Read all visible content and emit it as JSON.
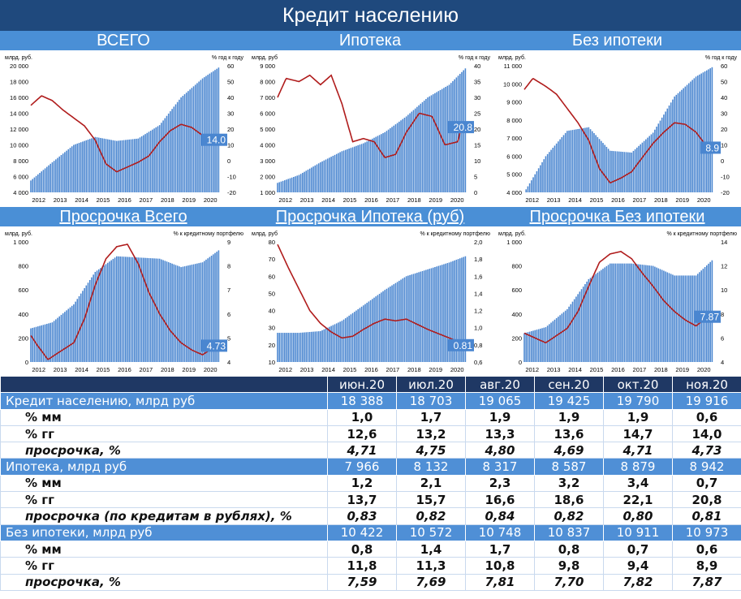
{
  "title": "Кредит населению",
  "sections": [
    "ВСЕГО",
    "Ипотека",
    "Без ипотеки",
    "Просрочка Всего",
    "Просрочка Ипотека (руб)",
    "Просрочка Без ипотеки"
  ],
  "colors": {
    "bar": "#4a86d0",
    "line": "#b01c1c",
    "header": "#1f497d",
    "band": "#4a8fd6",
    "tag": "#4a86d0"
  },
  "chart_data": [
    {
      "type": "bar+line",
      "panel": "ВСЕГО",
      "ylabel_left": "млрд. руб.",
      "ylabel_right": "% год к году",
      "left_ticks": [
        "20 000",
        "18 000",
        "16 000",
        "14 000",
        "12 000",
        "10 000",
        "8 000",
        "6 000",
        "4 000"
      ],
      "left_range": [
        4000,
        20000
      ],
      "right_ticks": [
        "60",
        "50",
        "40",
        "30",
        "20",
        "10",
        "0",
        "-10",
        "-20"
      ],
      "right_range": [
        -20,
        60
      ],
      "x_ticks": [
        "2012",
        "2013",
        "2014",
        "2015",
        "2016",
        "2017",
        "2018",
        "2019",
        "2020"
      ],
      "x_range": [
        2012,
        2021
      ],
      "bars": [
        [
          2012,
          5500
        ],
        [
          2013,
          7800
        ],
        [
          2014,
          10000
        ],
        [
          2015,
          11000
        ],
        [
          2016,
          10500
        ],
        [
          2017,
          10800
        ],
        [
          2018,
          12500
        ],
        [
          2019,
          16000
        ],
        [
          2020,
          18400
        ],
        [
          2020.83,
          19916
        ]
      ],
      "line": [
        [
          2012,
          35
        ],
        [
          2012.5,
          41
        ],
        [
          2013,
          38
        ],
        [
          2013.5,
          32
        ],
        [
          2014,
          27
        ],
        [
          2014.5,
          22
        ],
        [
          2015,
          13
        ],
        [
          2015.5,
          -2
        ],
        [
          2016,
          -7
        ],
        [
          2016.5,
          -4
        ],
        [
          2017,
          -1
        ],
        [
          2017.5,
          3
        ],
        [
          2018,
          12
        ],
        [
          2018.5,
          19
        ],
        [
          2019,
          23
        ],
        [
          2019.5,
          21
        ],
        [
          2020,
          16
        ],
        [
          2020.5,
          12
        ],
        [
          2020.83,
          14
        ]
      ],
      "last_label": "14.0"
    },
    {
      "type": "bar+line",
      "panel": "Ипотека",
      "ylabel_left": "млрд. руб",
      "ylabel_right": "% год к году",
      "left_ticks": [
        "9 000",
        "8 000",
        "7 000",
        "6 000",
        "5 000",
        "4 000",
        "3 000",
        "2 000",
        "1 000"
      ],
      "left_range": [
        1000,
        9000
      ],
      "right_ticks": [
        "40",
        "35",
        "30",
        "25",
        "20",
        "15",
        "10",
        "5",
        "0"
      ],
      "right_range": [
        0,
        40
      ],
      "x_ticks": [
        "2012",
        "2013",
        "2014",
        "2015",
        "2016",
        "2017",
        "2018",
        "2019",
        "2020"
      ],
      "x_range": [
        2012,
        2021
      ],
      "bars": [
        [
          2012,
          1600
        ],
        [
          2013,
          2100
        ],
        [
          2014,
          2900
        ],
        [
          2015,
          3600
        ],
        [
          2016,
          4100
        ],
        [
          2017,
          4800
        ],
        [
          2018,
          5800
        ],
        [
          2019,
          7000
        ],
        [
          2020,
          7800
        ],
        [
          2020.83,
          8942
        ]
      ],
      "line": [
        [
          2012,
          30
        ],
        [
          2012.4,
          36
        ],
        [
          2013,
          35
        ],
        [
          2013.5,
          37
        ],
        [
          2014,
          34
        ],
        [
          2014.5,
          37
        ],
        [
          2015,
          28
        ],
        [
          2015.5,
          16
        ],
        [
          2016,
          17
        ],
        [
          2016.5,
          16
        ],
        [
          2017,
          11
        ],
        [
          2017.5,
          12
        ],
        [
          2018,
          19
        ],
        [
          2018.6,
          25
        ],
        [
          2019.2,
          24
        ],
        [
          2019.8,
          15
        ],
        [
          2020.4,
          16
        ],
        [
          2020.6,
          22
        ],
        [
          2020.83,
          21
        ]
      ],
      "last_label": "20.8"
    },
    {
      "type": "bar+line",
      "panel": "Без ипотеки",
      "ylabel_left": "млрд. руб.",
      "ylabel_right": "% год к году",
      "left_ticks": [
        "11 000",
        "10 000",
        "9 000",
        "8 000",
        "7 000",
        "6 000",
        "5 000",
        "4 000"
      ],
      "left_range": [
        4000,
        11000
      ],
      "right_ticks": [
        "60",
        "50",
        "40",
        "30",
        "20",
        "10",
        "0",
        "-10",
        "-20"
      ],
      "right_range": [
        -20,
        60
      ],
      "x_ticks": [
        "2012",
        "2013",
        "2014",
        "2015",
        "2016",
        "2017",
        "2018",
        "2019",
        "2020"
      ],
      "x_range": [
        2012,
        2021
      ],
      "bars": [
        [
          2012,
          4000
        ],
        [
          2013,
          6000
        ],
        [
          2014,
          7400
        ],
        [
          2015,
          7600
        ],
        [
          2016,
          6300
        ],
        [
          2017,
          6200
        ],
        [
          2018,
          7300
        ],
        [
          2019,
          9300
        ],
        [
          2020,
          10400
        ],
        [
          2020.83,
          10973
        ]
      ],
      "line": [
        [
          2012,
          45
        ],
        [
          2012.4,
          52
        ],
        [
          2013,
          47
        ],
        [
          2013.5,
          42
        ],
        [
          2014,
          33
        ],
        [
          2014.5,
          24
        ],
        [
          2015,
          13
        ],
        [
          2015.5,
          -5
        ],
        [
          2016,
          -14
        ],
        [
          2016.5,
          -11
        ],
        [
          2017,
          -7
        ],
        [
          2017.5,
          2
        ],
        [
          2018,
          11
        ],
        [
          2018.5,
          18
        ],
        [
          2019,
          24
        ],
        [
          2019.5,
          23
        ],
        [
          2020,
          18
        ],
        [
          2020.5,
          9
        ],
        [
          2020.83,
          9
        ]
      ],
      "last_label": "8.9"
    },
    {
      "type": "bar+line",
      "panel": "Просрочка Всего",
      "ylabel_left": "млрд. руб.",
      "ylabel_right": "% к кредитному портфелю",
      "left_ticks": [
        "1 000",
        "800",
        "600",
        "400",
        "200",
        "0"
      ],
      "left_range": [
        0,
        1000
      ],
      "right_ticks": [
        "9",
        "8",
        "7",
        "6",
        "5",
        "4"
      ],
      "right_range": [
        4,
        9
      ],
      "x_ticks": [
        "2012",
        "2013",
        "2014",
        "2015",
        "2016",
        "2017",
        "2018",
        "2019",
        "2020"
      ],
      "x_range": [
        2012,
        2021
      ],
      "bars": [
        [
          2012,
          280
        ],
        [
          2013,
          330
        ],
        [
          2014,
          480
        ],
        [
          2015,
          750
        ],
        [
          2016,
          880
        ],
        [
          2017,
          870
        ],
        [
          2018,
          860
        ],
        [
          2019,
          790
        ],
        [
          2020,
          830
        ],
        [
          2020.83,
          940
        ]
      ],
      "line": [
        [
          2012,
          5.1
        ],
        [
          2012.3,
          4.7
        ],
        [
          2012.8,
          4.1
        ],
        [
          2013.3,
          4.4
        ],
        [
          2014,
          4.8
        ],
        [
          2014.5,
          5.8
        ],
        [
          2015,
          7.2
        ],
        [
          2015.5,
          8.3
        ],
        [
          2016,
          8.8
        ],
        [
          2016.5,
          8.9
        ],
        [
          2017,
          8.1
        ],
        [
          2017.5,
          6.9
        ],
        [
          2018,
          6.0
        ],
        [
          2018.5,
          5.3
        ],
        [
          2019,
          4.8
        ],
        [
          2019.5,
          4.5
        ],
        [
          2020,
          4.3
        ],
        [
          2020.5,
          4.6
        ],
        [
          2020.83,
          4.73
        ]
      ],
      "last_label": "4.73"
    },
    {
      "type": "bar+line",
      "panel": "Просрочка Ипотека (руб)",
      "ylabel_left": "млрд. руб",
      "ylabel_right": "% к кредитному портфелю",
      "left_ticks": [
        "80",
        "70",
        "60",
        "50",
        "40",
        "30",
        "20",
        "10"
      ],
      "left_range": [
        10,
        80
      ],
      "right_ticks": [
        "2,0",
        "1,8",
        "1,6",
        "1,4",
        "1,2",
        "1,0",
        "0,8",
        "0,6"
      ],
      "right_range": [
        0.6,
        2.0
      ],
      "x_ticks": [
        "2012",
        "2013",
        "2014",
        "2015",
        "2016",
        "2017",
        "2018",
        "2019",
        "2020"
      ],
      "x_range": [
        2012,
        2021
      ],
      "bars": [
        [
          2012,
          27
        ],
        [
          2013,
          27
        ],
        [
          2014,
          28
        ],
        [
          2015,
          34
        ],
        [
          2016,
          43
        ],
        [
          2017,
          52
        ],
        [
          2018,
          60
        ],
        [
          2019,
          64
        ],
        [
          2020,
          68
        ],
        [
          2020.83,
          72
        ]
      ],
      "line": [
        [
          2012,
          1.97
        ],
        [
          2012.5,
          1.7
        ],
        [
          2013,
          1.45
        ],
        [
          2013.5,
          1.2
        ],
        [
          2014,
          1.05
        ],
        [
          2014.5,
          0.95
        ],
        [
          2015,
          0.88
        ],
        [
          2015.5,
          0.9
        ],
        [
          2016,
          0.98
        ],
        [
          2016.5,
          1.05
        ],
        [
          2017,
          1.1
        ],
        [
          2017.5,
          1.08
        ],
        [
          2018,
          1.1
        ],
        [
          2018.5,
          1.04
        ],
        [
          2019,
          0.98
        ],
        [
          2019.5,
          0.93
        ],
        [
          2020,
          0.88
        ],
        [
          2020.5,
          0.83
        ],
        [
          2020.83,
          0.81
        ]
      ],
      "last_label": "0.81"
    },
    {
      "type": "bar+line",
      "panel": "Просрочка Без ипотеки",
      "ylabel_left": "млрд. руб.",
      "ylabel_right": "% к кредитному портфелю",
      "left_ticks": [
        "1 000",
        "800",
        "600",
        "400",
        "200",
        "0"
      ],
      "left_range": [
        0,
        1000
      ],
      "right_ticks": [
        "14",
        "12",
        "10",
        "8",
        "6",
        "4"
      ],
      "right_range": [
        4,
        14
      ],
      "x_ticks": [
        "2012",
        "2013",
        "2014",
        "2015",
        "2016",
        "2017",
        "2018",
        "2019",
        "2020"
      ],
      "x_range": [
        2012,
        2021
      ],
      "bars": [
        [
          2012,
          240
        ],
        [
          2013,
          290
        ],
        [
          2014,
          440
        ],
        [
          2015,
          690
        ],
        [
          2016,
          820
        ],
        [
          2017,
          820
        ],
        [
          2018,
          800
        ],
        [
          2019,
          720
        ],
        [
          2020,
          720
        ],
        [
          2020.83,
          860
        ]
      ],
      "line": [
        [
          2012,
          6.4
        ],
        [
          2012.5,
          6.0
        ],
        [
          2013,
          5.6
        ],
        [
          2013.5,
          6.2
        ],
        [
          2014,
          6.8
        ],
        [
          2014.5,
          8.2
        ],
        [
          2015,
          10.3
        ],
        [
          2015.5,
          12.3
        ],
        [
          2016,
          13.0
        ],
        [
          2016.5,
          13.2
        ],
        [
          2017,
          12.6
        ],
        [
          2017.5,
          11.4
        ],
        [
          2018,
          10.3
        ],
        [
          2018.5,
          9.1
        ],
        [
          2019,
          8.2
        ],
        [
          2019.5,
          7.5
        ],
        [
          2020,
          7.0
        ],
        [
          2020.5,
          7.7
        ],
        [
          2020.83,
          7.87
        ]
      ],
      "last_label": "7.87"
    }
  ],
  "table": {
    "columns": [
      "июн.20",
      "июл.20",
      "авг.20",
      "сен.20",
      "окт.20",
      "ноя.20"
    ],
    "rows": [
      {
        "kind": "main",
        "label": "Кредит населению, млрд руб",
        "values": [
          "18 388",
          "18 703",
          "19 065",
          "19 425",
          "19 790",
          "19 916"
        ]
      },
      {
        "kind": "sub",
        "label": "% мм",
        "values": [
          "1,0",
          "1,7",
          "1,9",
          "1,9",
          "1,9",
          "0,6"
        ]
      },
      {
        "kind": "sub",
        "label": "% гг",
        "values": [
          "12,6",
          "13,2",
          "13,3",
          "13,6",
          "14,7",
          "14,0"
        ]
      },
      {
        "kind": "sub it",
        "label": "просрочка, %",
        "values": [
          "4,71",
          "4,75",
          "4,80",
          "4,69",
          "4,71",
          "4,73"
        ]
      },
      {
        "kind": "main",
        "label": "Ипотека, млрд руб",
        "values": [
          "7 966",
          "8 132",
          "8 317",
          "8 587",
          "8 879",
          "8 942"
        ]
      },
      {
        "kind": "sub",
        "label": "% мм",
        "values": [
          "1,2",
          "2,1",
          "2,3",
          "3,2",
          "3,4",
          "0,7"
        ]
      },
      {
        "kind": "sub",
        "label": "% гг",
        "values": [
          "13,7",
          "15,7",
          "16,6",
          "18,6",
          "22,1",
          "20,8"
        ]
      },
      {
        "kind": "sub it",
        "label": "просрочка (по кредитам в рублях), %",
        "values": [
          "0,83",
          "0,82",
          "0,84",
          "0,82",
          "0,80",
          "0,81"
        ]
      },
      {
        "kind": "main",
        "label": "Без ипотеки, млрд руб",
        "values": [
          "10 422",
          "10 572",
          "10 748",
          "10 837",
          "10 911",
          "10 973"
        ]
      },
      {
        "kind": "sub",
        "label": "% мм",
        "values": [
          "0,8",
          "1,4",
          "1,7",
          "0,8",
          "0,7",
          "0,6"
        ]
      },
      {
        "kind": "sub",
        "label": "% гг",
        "values": [
          "11,8",
          "11,3",
          "10,8",
          "9,8",
          "9,4",
          "8,9"
        ]
      },
      {
        "kind": "sub it",
        "label": "просрочка, %",
        "values": [
          "7,59",
          "7,69",
          "7,81",
          "7,70",
          "7,82",
          "7,87"
        ]
      }
    ]
  }
}
